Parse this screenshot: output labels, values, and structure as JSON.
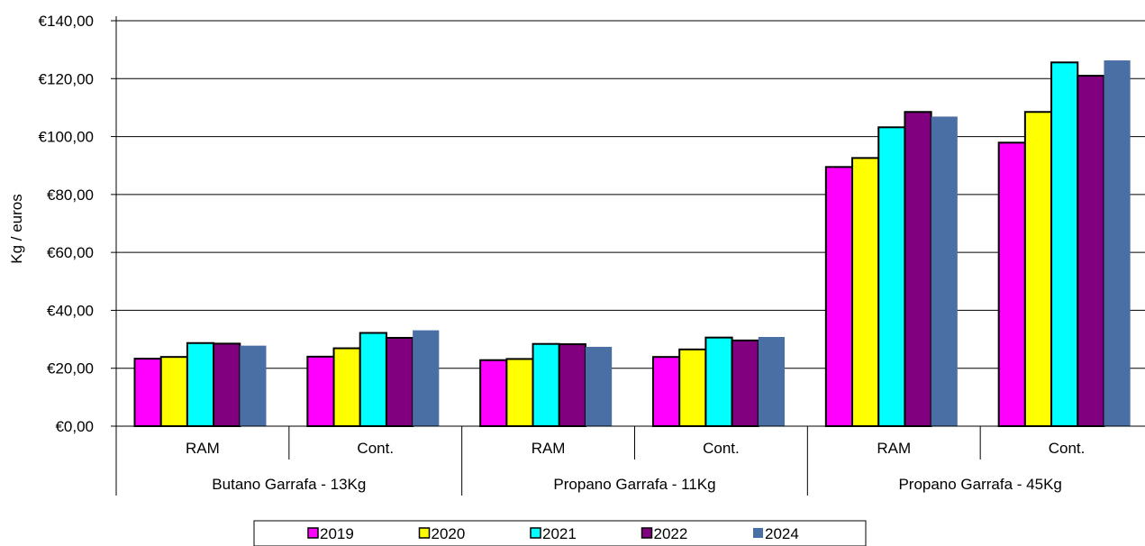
{
  "chart_data": {
    "type": "bar",
    "title": "",
    "ylabel": "Kg / euros",
    "xlabel": "",
    "ylim": [
      0,
      140
    ],
    "yticks": [
      0,
      20,
      40,
      60,
      80,
      100,
      120,
      140
    ],
    "ytick_labels": [
      "€0,00",
      "€20,00",
      "€40,00",
      "€60,00",
      "€80,00",
      "€100,00",
      "€120,00",
      "€140,00"
    ],
    "grid": true,
    "legend_position": "bottom",
    "groups": [
      {
        "label": "Butano Garrafa - 13Kg",
        "subcategories": [
          "RAM",
          "Cont."
        ]
      },
      {
        "label": "Propano Garrafa - 11Kg",
        "subcategories": [
          "RAM",
          "Cont."
        ]
      },
      {
        "label": "Propano Garrafa - 45Kg",
        "subcategories": [
          "RAM",
          "Cont."
        ]
      }
    ],
    "categories": [
      "Butano Garrafa - 13Kg / RAM",
      "Butano Garrafa - 13Kg / Cont.",
      "Propano Garrafa - 11Kg / RAM",
      "Propano Garrafa - 11Kg / Cont.",
      "Propano Garrafa - 45Kg / RAM",
      "Propano Garrafa - 45Kg / Cont."
    ],
    "series": [
      {
        "name": "2019",
        "color": "#FF00FF",
        "outlined": true,
        "values": [
          23.3,
          24.0,
          22.8,
          23.9,
          89.5,
          97.9
        ]
      },
      {
        "name": "2020",
        "color": "#FFFF00",
        "outlined": true,
        "values": [
          23.9,
          26.9,
          23.2,
          26.5,
          92.6,
          108.5
        ]
      },
      {
        "name": "2021",
        "color": "#00FFFF",
        "outlined": true,
        "values": [
          28.7,
          32.2,
          28.4,
          30.6,
          103.2,
          125.6
        ]
      },
      {
        "name": "2022",
        "color": "#800080",
        "outlined": true,
        "values": [
          28.5,
          30.5,
          28.3,
          29.6,
          108.5,
          121.0
        ]
      },
      {
        "name": "2024",
        "color": "#4A6FA5",
        "outlined": false,
        "values": [
          27.8,
          33.1,
          27.4,
          30.8,
          106.9,
          126.3
        ]
      }
    ]
  }
}
